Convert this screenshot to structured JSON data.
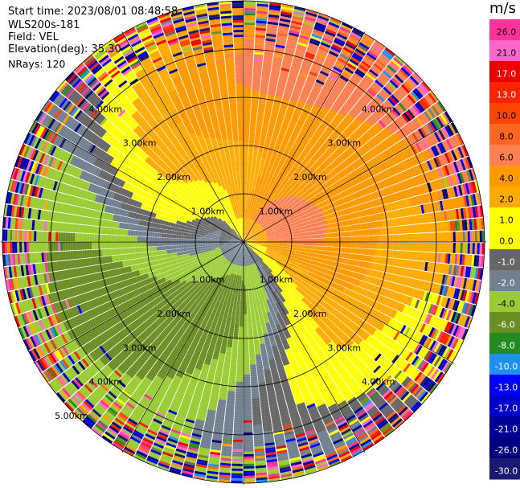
{
  "header": {
    "start_time": "Start time: 2023/08/01 08:48:58",
    "instrument": "WLS200s-181",
    "field": "Field: VEL",
    "elevation": "Elevation(deg): 35.30",
    "nrays": "NRays: 120"
  },
  "chart_data": {
    "type": "heatmap",
    "projection": "polar (PPI scan)",
    "n_rays": 120,
    "range_unit": "km",
    "range_rings_km": [
      1.0,
      2.0,
      3.0,
      4.0,
      5.0
    ],
    "range_ring_labels": [
      "1.00km",
      "2.00km",
      "3.00km",
      "4.00km",
      "5.00km"
    ],
    "max_range_km": 5.0,
    "colorbar": {
      "unit": "m/s",
      "ticks": [
        "26.0",
        "21.0",
        "17.0",
        "13.0",
        "10.0",
        "8.0",
        "6.0",
        "4.0",
        "2.0",
        "1.0",
        "0.0",
        "-1.0",
        "-2.0",
        "-4.0",
        "-6.0",
        "-8.0",
        "-10.0",
        "-13.0",
        "-17.0",
        "-21.0",
        "-26.0",
        "-30.0"
      ],
      "levels": [
        30,
        26,
        21,
        17,
        13,
        10,
        8,
        6,
        4,
        2,
        1,
        0,
        -1,
        -2,
        -4,
        -6,
        -8,
        -10,
        -13,
        -17,
        -21,
        -26,
        -30
      ],
      "colors": [
        "#ff3399",
        "#ff66cc",
        "#ee0000",
        "#ff2200",
        "#ff4400",
        "#ff6622",
        "#ff7f50",
        "#ff9900",
        "#ffaa00",
        "#ffff00",
        "#ffff00",
        "#666666",
        "#708090",
        "#99cc33",
        "#6b8e23",
        "#228b22",
        "#1e90ff",
        "#0000ff",
        "#0000cd",
        "#000099",
        "#000080",
        "#191970"
      ]
    }
  }
}
